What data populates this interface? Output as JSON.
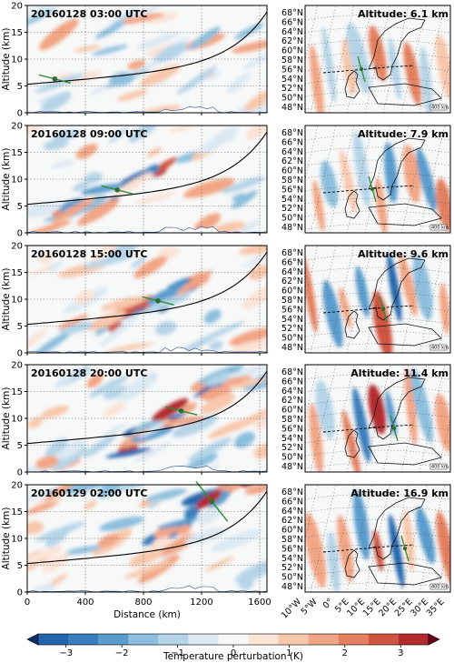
{
  "chart_data": {
    "type": "heatmap",
    "colormap": "RdBu_r",
    "colorbar": {
      "label": "Temperature perturbation (K)",
      "ticks": [
        -3,
        -2,
        -1,
        0,
        1,
        2,
        3
      ],
      "range": [
        -3.5,
        3.5
      ],
      "colors": [
        "#08306b",
        "#2166ac",
        "#3a7fbd",
        "#5a9ccd",
        "#8cbfdd",
        "#b5d4e8",
        "#dce9f3",
        "#f7f7f7",
        "#fbe3d6",
        "#f8c8ac",
        "#f2a584",
        "#e4805f",
        "#d0543f",
        "#b42a2d",
        "#67001f"
      ]
    },
    "cross_sections": {
      "xlabel": "Distance (km)",
      "ylabel": "Altitude (km)",
      "xlim": [
        0,
        1650
      ],
      "ylim": [
        0,
        20
      ],
      "xticks": [
        0,
        400,
        800,
        1200,
        1600
      ],
      "yticks": [
        0,
        5,
        10,
        15,
        20
      ],
      "grid": true,
      "curve_note": "black line marks the path of the traced ray",
      "panels": [
        {
          "time": "20160128 03:00 UTC",
          "marker": {
            "x": 190,
            "y": 6.3
          }
        },
        {
          "time": "20160128 09:00 UTC",
          "marker": {
            "x": 620,
            "y": 8.0
          }
        },
        {
          "time": "20160128 15:00 UTC",
          "marker": {
            "x": 900,
            "y": 9.7
          }
        },
        {
          "time": "20160128 20:00 UTC",
          "marker": {
            "x": 1060,
            "y": 11.4
          }
        },
        {
          "time": "20160129 02:00 UTC",
          "marker": {
            "x": 1270,
            "y": 16.9
          }
        }
      ]
    },
    "maps": {
      "lat_labels": [
        "68°N",
        "66°N",
        "64°N",
        "62°N",
        "60°N",
        "58°N",
        "56°N",
        "54°N",
        "52°N",
        "50°N",
        "48°N"
      ],
      "lon_labels": [
        "10°W",
        "5°W",
        "0°",
        "5°E",
        "10°E",
        "15°E",
        "20°E",
        "25°E",
        "30°E",
        "35°E"
      ],
      "scale_label": "400 km",
      "panels": [
        {
          "altitude": "Altitude: 6.1 km"
        },
        {
          "altitude": "Altitude: 7.9 km"
        },
        {
          "altitude": "Altitude: 9.6 km"
        },
        {
          "altitude": "Altitude: 11.4 km"
        },
        {
          "altitude": "Altitude: 16.9 km"
        }
      ]
    }
  }
}
